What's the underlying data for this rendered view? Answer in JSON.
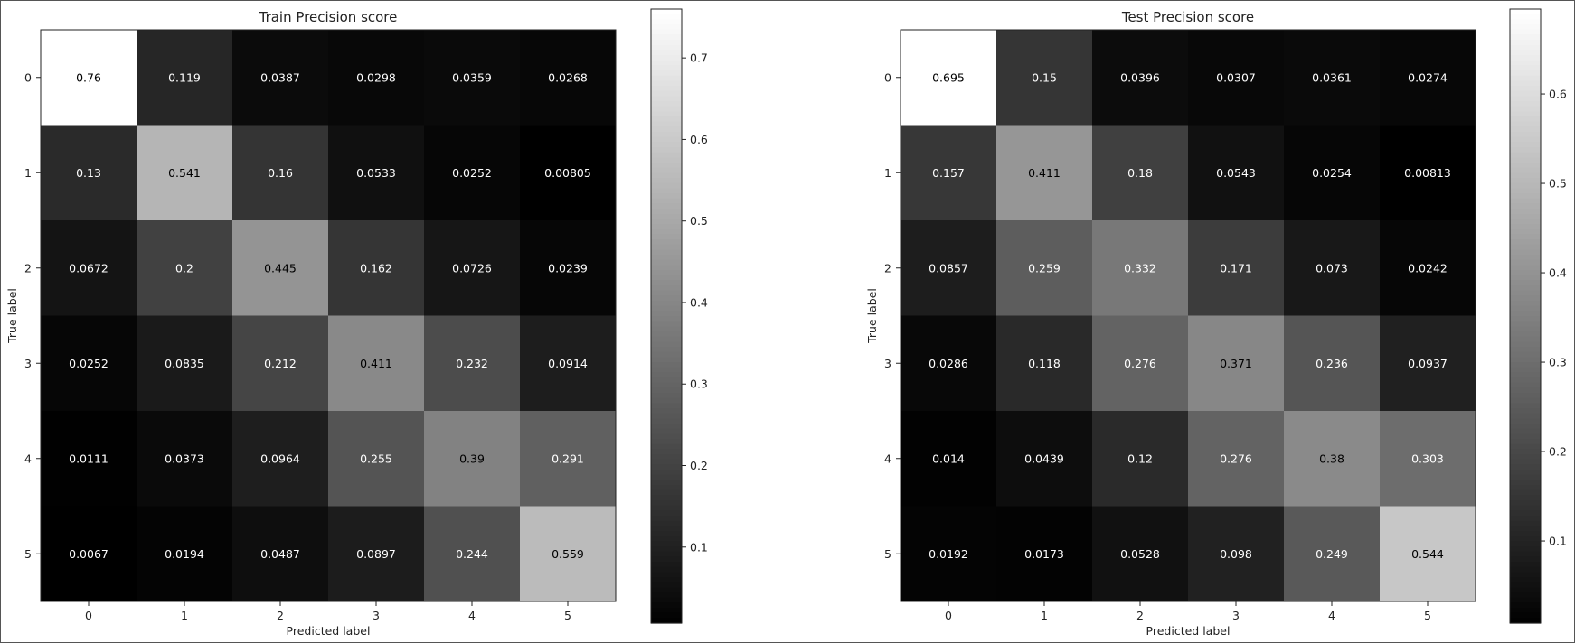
{
  "chart_data": [
    {
      "type": "heatmap",
      "title": "Train Precision score",
      "xlabel": "Predicted label",
      "ylabel": "True label",
      "x_categories": [
        "0",
        "1",
        "2",
        "3",
        "4",
        "5"
      ],
      "y_categories": [
        "0",
        "1",
        "2",
        "3",
        "4",
        "5"
      ],
      "values": [
        [
          0.76,
          0.119,
          0.0387,
          0.0298,
          0.0359,
          0.0268
        ],
        [
          0.13,
          0.541,
          0.16,
          0.0533,
          0.0252,
          0.00805
        ],
        [
          0.0672,
          0.2,
          0.445,
          0.162,
          0.0726,
          0.0239
        ],
        [
          0.0252,
          0.0835,
          0.212,
          0.411,
          0.232,
          0.0914
        ],
        [
          0.0111,
          0.0373,
          0.0964,
          0.255,
          0.39,
          0.291
        ],
        [
          0.0067,
          0.0194,
          0.0487,
          0.0897,
          0.244,
          0.559
        ]
      ],
      "labels": [
        [
          "0.76",
          "0.119",
          "0.0387",
          "0.0298",
          "0.0359",
          "0.0268"
        ],
        [
          "0.13",
          "0.541",
          "0.16",
          "0.0533",
          "0.0252",
          "0.00805"
        ],
        [
          "0.0672",
          "0.2",
          "0.445",
          "0.162",
          "0.0726",
          "0.0239"
        ],
        [
          "0.0252",
          "0.0835",
          "0.212",
          "0.411",
          "0.232",
          "0.0914"
        ],
        [
          "0.0111",
          "0.0373",
          "0.0964",
          "0.255",
          "0.39",
          "0.291"
        ],
        [
          "0.0067",
          "0.0194",
          "0.0487",
          "0.0897",
          "0.244",
          "0.559"
        ]
      ],
      "colormap": "gray",
      "color_range": [
        0.0067,
        0.76
      ],
      "colorbar_ticks": [
        "0.1",
        "0.2",
        "0.3",
        "0.4",
        "0.5",
        "0.6",
        "0.7"
      ]
    },
    {
      "type": "heatmap",
      "title": "Test Precision score",
      "xlabel": "Predicted label",
      "ylabel": "True label",
      "x_categories": [
        "0",
        "1",
        "2",
        "3",
        "4",
        "5"
      ],
      "y_categories": [
        "0",
        "1",
        "2",
        "3",
        "4",
        "5"
      ],
      "values": [
        [
          0.695,
          0.15,
          0.0396,
          0.0307,
          0.0361,
          0.0274
        ],
        [
          0.157,
          0.411,
          0.18,
          0.0543,
          0.0254,
          0.00813
        ],
        [
          0.0857,
          0.259,
          0.332,
          0.171,
          0.073,
          0.0242
        ],
        [
          0.0286,
          0.118,
          0.276,
          0.371,
          0.236,
          0.0937
        ],
        [
          0.014,
          0.0439,
          0.12,
          0.276,
          0.38,
          0.303
        ],
        [
          0.0192,
          0.0173,
          0.0528,
          0.098,
          0.249,
          0.544
        ]
      ],
      "labels": [
        [
          "0.695",
          "0.15",
          "0.0396",
          "0.0307",
          "0.0361",
          "0.0274"
        ],
        [
          "0.157",
          "0.411",
          "0.18",
          "0.0543",
          "0.0254",
          "0.00813"
        ],
        [
          "0.0857",
          "0.259",
          "0.332",
          "0.171",
          "0.073",
          "0.0242"
        ],
        [
          "0.0286",
          "0.118",
          "0.276",
          "0.371",
          "0.236",
          "0.0937"
        ],
        [
          "0.014",
          "0.0439",
          "0.12",
          "0.276",
          "0.38",
          "0.303"
        ],
        [
          "0.0192",
          "0.0173",
          "0.0528",
          "0.098",
          "0.249",
          "0.544"
        ]
      ],
      "colormap": "gray",
      "color_range": [
        0.00813,
        0.695
      ],
      "colorbar_ticks": [
        "0.1",
        "0.2",
        "0.3",
        "0.4",
        "0.5",
        "0.6"
      ]
    }
  ]
}
